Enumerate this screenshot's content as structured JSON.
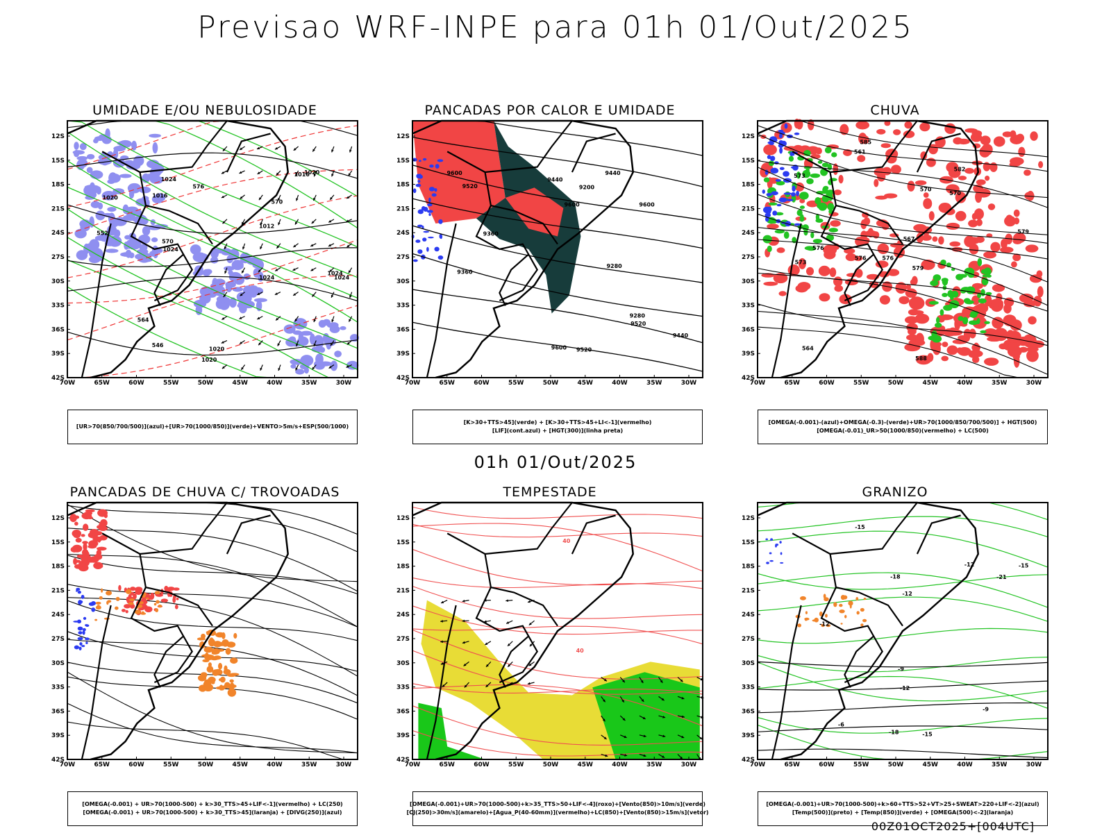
{
  "header": {
    "title": "Previsao WRF-INPE  para 01h 01/Out/2025",
    "subtitle": "01h 01/Out/2025",
    "footer": "00Z01OCT2025+[004UTC]"
  },
  "axes": {
    "lat_labels": [
      "12S",
      "15S",
      "18S",
      "21S",
      "24S",
      "27S",
      "30S",
      "33S",
      "36S",
      "39S",
      "42S"
    ],
    "lon_labels": [
      "70W",
      "65W",
      "60W",
      "55W",
      "50W",
      "45W",
      "40W",
      "35W",
      "30W"
    ]
  },
  "panels": [
    {
      "id": "umidade",
      "title": "UMIDADE E/OU NEBULOSIDADE",
      "legend": [
        "[UR>70(850/700/500)](azul)+[UR>70(1000/850)](verde)+VENTO>5m/s+ESP(500/1000)"
      ],
      "contour_labels": [
        "1020",
        "1016",
        "1012",
        "1020",
        "1016",
        "1020",
        "1024",
        "1024",
        "1020",
        "1024",
        "1024",
        "1024",
        "570",
        "564",
        "552",
        "546",
        "570",
        "576"
      ]
    },
    {
      "id": "pancadas_calor",
      "title": "PANCADAS POR CALOR E UMIDADE",
      "legend": [
        "[K>30+TTS>45](verde) + [K>30+TTS>45+LI<-1](vermelho)",
        "[LIF](cont.azul) + [HGT(300)](linha preta)"
      ],
      "contour_labels": [
        "9600",
        "9520",
        "9600",
        "9600",
        "9600",
        "9440",
        "9520",
        "9440",
        "9360",
        "9360",
        "9280",
        "9200",
        "9280",
        "9520",
        "9440"
      ]
    },
    {
      "id": "chuva",
      "title": "CHUVA",
      "legend": [
        "[OMEGA(-0.001)-(azul)+OMEGA(-0.3)-(verde)+UR>70(1000/850/700/500)] + HGT(500)",
        "[OMEGA(-0.01)_UR>50(1000/850)(vermelho) + LC(500)"
      ],
      "contour_labels": [
        "585",
        "582",
        "579",
        "576",
        "579",
        "576",
        "573",
        "570",
        "573",
        "570",
        "567",
        "564",
        "561",
        "576",
        "588"
      ]
    },
    {
      "id": "trovoadas",
      "title": "PANCADAS DE CHUVA C/ TROVOADAS",
      "legend": [
        "[OMEGA(-0.001) + UR>70(1000-500) + k>30_TTS>45+LIF<-1](vermelho) + LC(250)",
        "[OMEGA(-0.001) + UR>70(1000-500) + k>30_TTS>45](laranja) + [DIVG(250)](azul)"
      ],
      "contour_labels": []
    },
    {
      "id": "tempestade",
      "title": "TEMPESTADE",
      "legend": [
        "[OMEGA(-0.001)+UR>70(1000-500)+k>35_TTS>50+LIF<-4](roxo)+[Vento(850)>10m/s](verde)",
        "[CJ(250)>30m/s](amarelo)+[Agua_P(40-60mm)](vermelho)+LC(850)+[Vento(850)>15m/s](vetor)"
      ],
      "contour_labels": [
        "40",
        "40"
      ]
    },
    {
      "id": "granizo",
      "title": "GRANIZO",
      "legend": [
        "[OMEGA(-0.001)+UR>70(1000-500)+k>60+TTS>52+VT>25+SWEAT>220+LIF<-2](azul)",
        "[Temp(500)](preto) + [Temp(850)](verde) + [OMEGA(500)<-2](laranja)"
      ],
      "contour_labels": [
        "-12",
        "-15",
        "-12",
        "-12",
        "-12",
        "-15",
        "-18",
        "-21",
        "-18",
        "-15",
        "-9",
        "-6",
        "-9"
      ]
    }
  ]
}
